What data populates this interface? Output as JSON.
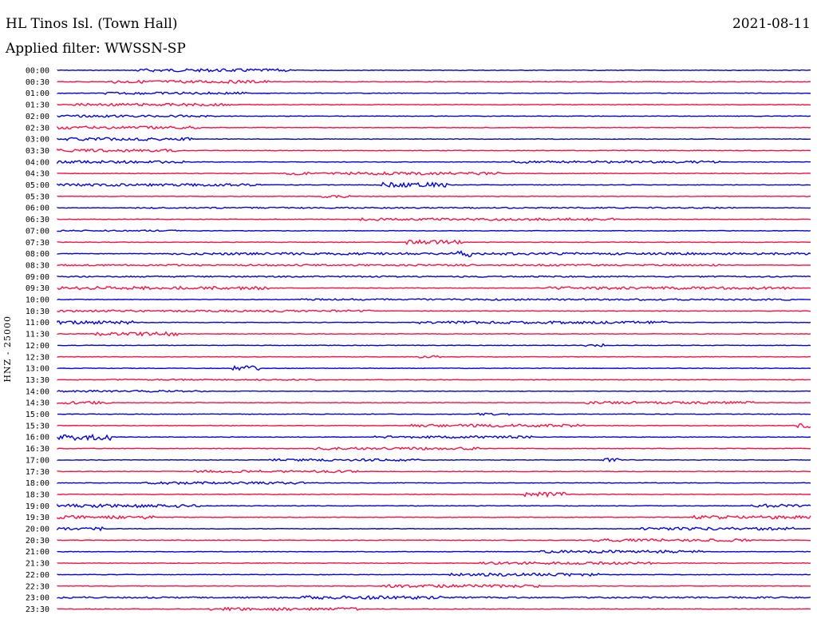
{
  "station": "HL Tinos Isl. (Town Hall)",
  "date": "2021-08-11",
  "filter": "Applied filter: WWSSN-SP",
  "channel": "HNZ - 25000",
  "colors": {
    "even": "#0000dd",
    "odd": "#ff1040"
  },
  "chart_data": {
    "type": "line",
    "title": "HL Tinos Isl. (Town Hall)",
    "ylabel": "HNZ - 25000",
    "rows": [
      "00:00",
      "00:30",
      "01:00",
      "01:30",
      "02:00",
      "02:30",
      "03:00",
      "03:30",
      "04:00",
      "04:30",
      "05:00",
      "05:30",
      "06:00",
      "06:30",
      "07:00",
      "07:30",
      "08:00",
      "08:30",
      "09:00",
      "09:30",
      "10:00",
      "10:30",
      "11:00",
      "11:30",
      "12:00",
      "12:30",
      "13:00",
      "13:30",
      "14:00",
      "14:30",
      "15:00",
      "15:30",
      "16:00",
      "16:30",
      "17:00",
      "17:30",
      "18:00",
      "18:30",
      "19:00",
      "19:30",
      "20:00",
      "20:30",
      "21:00",
      "21:30",
      "22:00",
      "22:30",
      "23:00",
      "23:30"
    ],
    "grid": false
  }
}
